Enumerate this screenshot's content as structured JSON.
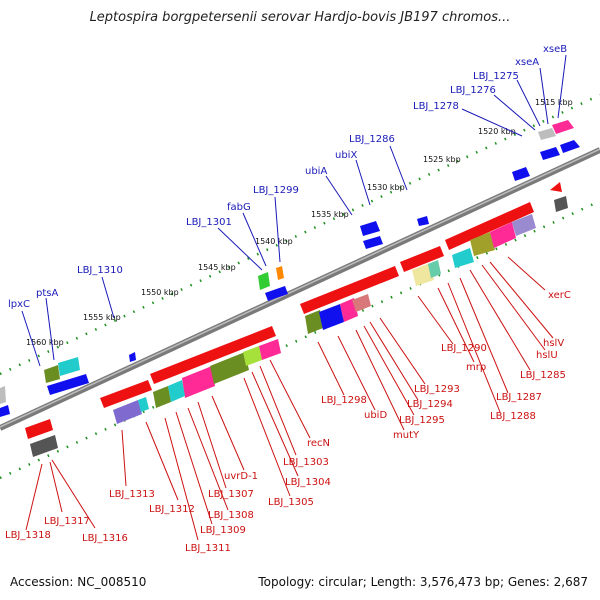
{
  "title": "Leptospira borgpetersenii serovar Hardjo-bovis JB197 chromos...",
  "footer": {
    "accession": "Accession: NC_008510",
    "summary": "Topology: circular; Length: 3,576,473 bp; Genes: 2,687"
  },
  "scale_labels": [
    "1515 kbp",
    "1520 kbp",
    "1525 kbp",
    "1530 kbp",
    "1535 kbp",
    "1540 kbp",
    "1545 kbp",
    "1550 kbp",
    "1555 kbp",
    "1560 kbp"
  ],
  "forward_genes": [
    "xseB",
    "xseA",
    "LBJ_1275",
    "LBJ_1276",
    "LBJ_1278",
    "LBJ_1286",
    "ubiX",
    "ubiA",
    "LBJ_1299",
    "fabG",
    "LBJ_1301",
    "LBJ_1310",
    "ptsA",
    "lpxC"
  ],
  "reverse_genes": [
    "xerC",
    "hslV",
    "hslU",
    "LBJ_1285",
    "mrp",
    "LBJ_1287",
    "LBJ_1288",
    "LBJ_1290",
    "LBJ_1293",
    "LBJ_1294",
    "LBJ_1295",
    "mutY",
    "ubiD",
    "LBJ_1298",
    "recN",
    "LBJ_1303",
    "LBJ_1304",
    "LBJ_1305",
    "uvrD-1",
    "LBJ_1307",
    "LBJ_1308",
    "LBJ_1309",
    "LBJ_1311",
    "LBJ_1312",
    "LBJ_1313",
    "LBJ_1316",
    "LBJ_1317",
    "LBJ_1318"
  ],
  "colors": {
    "forward_gene": "#1010ee",
    "reverse_gene": "#ee1111",
    "backbone": "#808080",
    "ticks": "#228b22",
    "label_forward": "#1a1ab8",
    "label_reverse": "#cc1111"
  }
}
